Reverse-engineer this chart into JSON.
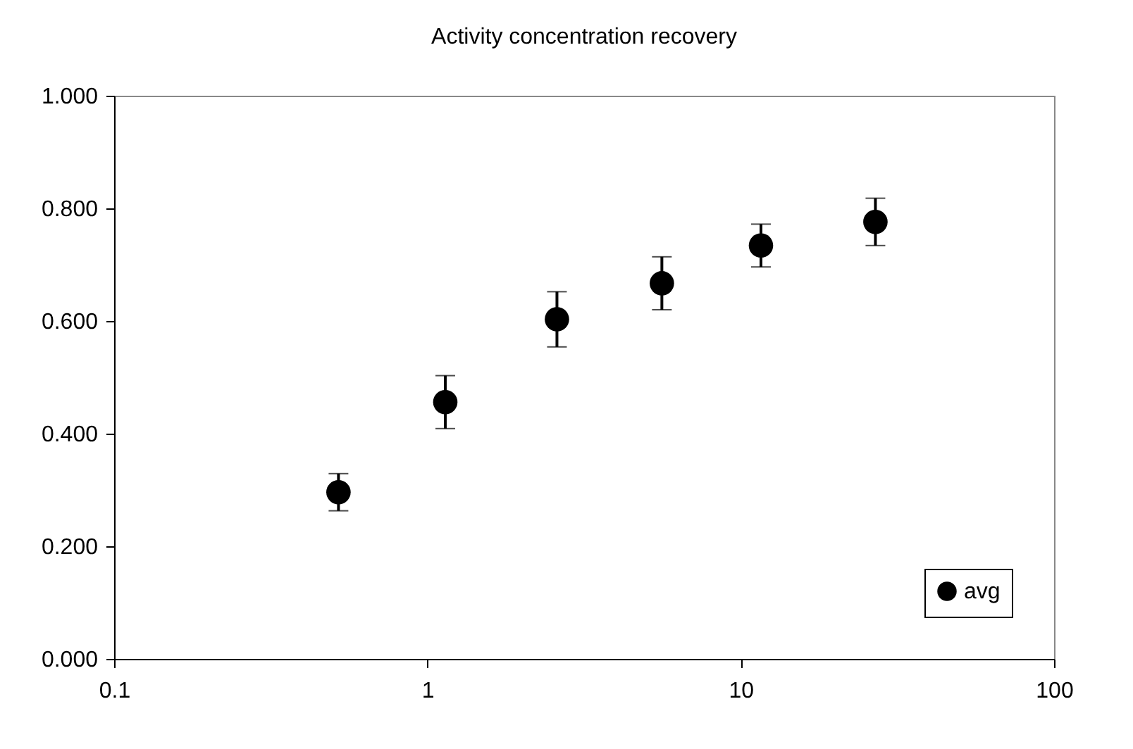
{
  "chart_data": {
    "type": "scatter",
    "title": "Activity concentration recovery",
    "x": [
      0.52,
      1.14,
      2.59,
      5.6,
      11.6,
      26.9
    ],
    "series": [
      {
        "name": "avg",
        "color": "#000000",
        "values": [
          0.296,
          0.456,
          0.603,
          0.667,
          0.734,
          0.776
        ],
        "errors": [
          0.033,
          0.047,
          0.049,
          0.047,
          0.038,
          0.042
        ]
      }
    ],
    "log": "x",
    "xlim": [
      0.1,
      100
    ],
    "xticks": [
      0.1,
      1,
      10,
      100
    ],
    "ylim": [
      0,
      1
    ],
    "yticks": [
      {
        "value": 0,
        "label": "0.000"
      },
      {
        "value": 0.2,
        "label": "0.200"
      },
      {
        "value": 0.4,
        "label": "0.400"
      },
      {
        "value": 0.6,
        "label": "0.600"
      },
      {
        "value": 0.8,
        "label": "0.800"
      },
      {
        "value": 1,
        "label": "1.000"
      }
    ],
    "grid": false,
    "legend": "bottom right",
    "marker": "circle"
  }
}
